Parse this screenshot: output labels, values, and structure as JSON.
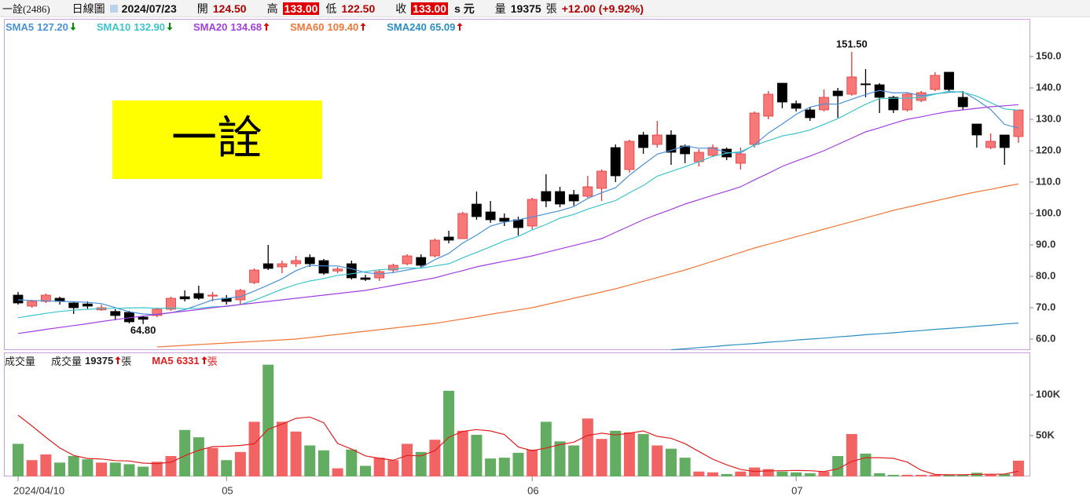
{
  "header": {
    "symbol": "一詮(2486)",
    "view": "日線圖",
    "date": "2024/07/23",
    "open_label": "開",
    "open": "124.50",
    "high_label": "高",
    "high": "133.00",
    "low_label": "低",
    "low": "122.50",
    "close_label": "收",
    "close": "133.00",
    "currency": "s 元",
    "volume_label": "量",
    "volume": "19375",
    "volume_unit": "張",
    "change": "+12.00 (+9.92%)"
  },
  "chart_data": [
    {
      "type": "candlestick",
      "watermark": "一詮",
      "categories": [
        "2024/04/10",
        null,
        null,
        null,
        null,
        null,
        null,
        null,
        null,
        null,
        null,
        null,
        null,
        null,
        null,
        "05",
        null,
        null,
        null,
        null,
        null,
        null,
        null,
        null,
        null,
        null,
        null,
        null,
        null,
        null,
        null,
        null,
        null,
        null,
        null,
        null,
        null,
        "06",
        null,
        null,
        null,
        null,
        null,
        null,
        null,
        null,
        null,
        null,
        null,
        null,
        null,
        null,
        null,
        null,
        null,
        null,
        "07",
        null,
        null,
        null,
        null,
        null,
        null,
        null,
        null,
        null,
        null,
        null,
        null,
        null,
        null,
        null,
        null
      ],
      "open": [
        74,
        70.5,
        72,
        73,
        71.5,
        71.2,
        69.3,
        68.8,
        68.5,
        67,
        67.5,
        69.5,
        73.5,
        74.5,
        73.8,
        73,
        72.5,
        78,
        84,
        83,
        84,
        86,
        85,
        81.7,
        84,
        79.5,
        79.5,
        82,
        84,
        86,
        86.5,
        92.5,
        92,
        103,
        100.5,
        98.5,
        98,
        96,
        107,
        107,
        106,
        105.5,
        108,
        121,
        114,
        125,
        122,
        125,
        121.5,
        116.5,
        118.5,
        120.5,
        116,
        122,
        131,
        141.5,
        135,
        133,
        133,
        139,
        138,
        141.3,
        141,
        137,
        133,
        136,
        139.5,
        145,
        137,
        128.5,
        121,
        125,
        124.5
      ],
      "high": [
        75,
        72.5,
        74.5,
        73.5,
        72,
        72,
        71,
        69.5,
        69,
        67.5,
        70,
        73.5,
        75.5,
        77,
        75,
        74,
        76,
        82.5,
        90,
        85,
        86.5,
        87,
        85.5,
        83,
        85,
        80.5,
        82,
        84,
        87,
        87,
        92,
        94.5,
        100.5,
        107,
        104,
        100,
        99,
        105,
        112.5,
        108.5,
        107.5,
        112,
        114,
        122,
        123.5,
        126,
        129.5,
        126.5,
        122,
        120.5,
        122,
        121,
        121,
        132.5,
        139,
        141.5,
        136,
        134,
        139.5,
        140,
        151.5,
        146,
        141.5,
        137.5,
        138.5,
        139,
        145,
        145,
        139,
        128.5,
        125.5,
        125,
        133
      ],
      "low": [
        71,
        70,
        71.5,
        71,
        68,
        69.5,
        69,
        66,
        65,
        64.8,
        67,
        69,
        72,
        72.5,
        72,
        71,
        71,
        77.5,
        82,
        81,
        83,
        83,
        80.5,
        81,
        79,
        78.5,
        78.5,
        81,
        83.5,
        83,
        86,
        90.5,
        92,
        98,
        97,
        96,
        93,
        95,
        102,
        102,
        102.5,
        105,
        104,
        110,
        113,
        119,
        121,
        115.5,
        116,
        115,
        118,
        117,
        114,
        121,
        130,
        133.5,
        132.5,
        129.5,
        132.5,
        130.5,
        137.5,
        137,
        132,
        132,
        132.5,
        135.5,
        139,
        139,
        133,
        121,
        120.5,
        115.5,
        122.5
      ],
      "close": [
        71.5,
        72,
        74,
        72,
        70,
        70.5,
        70,
        67.5,
        65.5,
        66.3,
        69.5,
        73,
        72.8,
        73,
        74,
        72,
        75.5,
        82,
        82.5,
        84,
        85,
        84,
        81,
        82.3,
        79.5,
        79,
        81.5,
        83.5,
        86.5,
        83.5,
        91.5,
        91.5,
        100,
        99,
        98,
        97.5,
        95.5,
        104.5,
        104,
        103,
        104,
        108.5,
        113.5,
        112,
        123,
        121,
        125,
        119.5,
        119,
        119.5,
        121,
        118,
        119,
        132,
        138,
        135.5,
        133.5,
        130.5,
        137,
        137.5,
        143.5,
        141,
        137,
        133,
        138,
        138.5,
        144,
        139.5,
        134,
        125,
        123,
        121,
        133
      ],
      "up_color": "#f77878",
      "up_border": "#e03a3a",
      "down_color": "#000000",
      "high_label": "151.50",
      "low_label": "64.80",
      "trend_colors": {
        "up": "#e00000",
        "down": "#008a00"
      },
      "series": [
        {
          "name": "SMA5",
          "legend_value": "127.20",
          "trend": "down",
          "color": "#4a90d9",
          "values": [
            72.5,
            72.3,
            72.2,
            72.0,
            71.9,
            71.7,
            71.3,
            70.0,
            68.7,
            68.0,
            67.8,
            68.4,
            69.4,
            70.9,
            72.5,
            73.0,
            73.5,
            75.3,
            77.2,
            79.2,
            81.8,
            83.5,
            83.3,
            83.3,
            82.4,
            81.2,
            80.7,
            81.2,
            82.0,
            82.8,
            85.3,
            87.3,
            90.6,
            93.1,
            96.0,
            97.2,
            98.0,
            98.9,
            99.9,
            100.9,
            102.2,
            104.8,
            106.6,
            108.2,
            112.2,
            115.6,
            118.9,
            120.1,
            121.5,
            120.8,
            120.8,
            119.4,
            119.3,
            121.9,
            125.6,
            128.5,
            131.6,
            133.9,
            134.9,
            134.8,
            136.4,
            137.9,
            139.2,
            138.4,
            138.5,
            137.5,
            138.1,
            138.6,
            138.8,
            136.2,
            133.1,
            128.4,
            127.2
          ]
        },
        {
          "name": "SMA10",
          "legend_value": "132.90",
          "trend": "down",
          "color": "#3cc4cc",
          "values": [
            66.8,
            67.5,
            68.2,
            68.8,
            69.2,
            69.5,
            69.7,
            69.8,
            69.9,
            70.0,
            69.8,
            69.9,
            69.7,
            69.8,
            70.3,
            70.4,
            71.0,
            72.4,
            74.1,
            75.9,
            77.4,
            78.5,
            79.3,
            80.3,
            80.8,
            81.5,
            82.1,
            82.3,
            82.7,
            82.6,
            83.3,
            84.0,
            85.9,
            87.6,
            89.4,
            91.3,
            92.7,
            94.8,
            96.5,
            98.5,
            99.7,
            101.4,
            102.8,
            104.1,
            106.6,
            108.9,
            111.9,
            113.4,
            114.9,
            116.5,
            118.2,
            119.2,
            119.7,
            121.7,
            123.2,
            124.7,
            125.5,
            126.6,
            128.4,
            130.2,
            132.5,
            134.8,
            136.6,
            136.7,
            136.7,
            137.0,
            138.0,
            138.9,
            138.6,
            137.4,
            135.3,
            133.3,
            132.9
          ]
        },
        {
          "name": "SMA20",
          "legend_value": "134.68",
          "trend": "up",
          "color": "#a040e0",
          "values": [
            61.8,
            62.4,
            63.1,
            63.7,
            64.3,
            64.9,
            65.6,
            66.2,
            66.8,
            67.3,
            67.9,
            68.4,
            68.9,
            69.4,
            70.0,
            70.5,
            71.0,
            71.5,
            72.0,
            72.5,
            73.0,
            73.5,
            74.0,
            74.5,
            75.0,
            75.5,
            76.3,
            77.1,
            77.9,
            78.7,
            79.5,
            80.7,
            81.8,
            83.0,
            83.9,
            84.8,
            85.6,
            86.5,
            87.6,
            88.7,
            89.8,
            90.9,
            92.0,
            94.0,
            96.0,
            98.0,
            99.7,
            101.3,
            103.0,
            104.4,
            105.8,
            107.1,
            108.5,
            110.7,
            112.8,
            115.0,
            116.7,
            118.3,
            120.0,
            122.0,
            124.0,
            126.0,
            127.3,
            128.7,
            130.0,
            130.8,
            131.7,
            132.5,
            133.0,
            133.5,
            134.0,
            134.3,
            134.68
          ]
        },
        {
          "name": "SMA60",
          "legend_value": "109.40",
          "trend": "up",
          "color": "#f07838",
          "values": [
            null,
            null,
            null,
            null,
            null,
            null,
            null,
            null,
            null,
            null,
            57.5,
            57.75,
            58,
            58.25,
            58.5,
            58.75,
            59,
            59.25,
            59.5,
            59.75,
            60,
            60.5,
            61,
            61.5,
            62,
            62.5,
            63,
            63.5,
            64,
            64.5,
            65,
            65.7,
            66.4,
            67.1,
            67.9,
            68.6,
            69.3,
            70,
            71,
            72,
            73,
            74,
            75,
            76,
            77.2,
            78.4,
            79.6,
            80.8,
            82,
            83.4,
            84.8,
            86.2,
            87.6,
            89,
            90.2,
            91.4,
            92.6,
            93.8,
            95,
            96.2,
            97.4,
            98.6,
            99.8,
            101,
            102,
            103,
            104,
            105,
            106,
            106.9,
            107.7,
            108.6,
            109.4
          ]
        },
        {
          "name": "SMA240",
          "legend_value": "65.09",
          "trend": "up",
          "color": "#2a8ec0",
          "values": [
            null,
            null,
            null,
            null,
            null,
            null,
            null,
            null,
            null,
            null,
            null,
            null,
            null,
            null,
            null,
            null,
            null,
            null,
            null,
            null,
            null,
            null,
            null,
            null,
            null,
            null,
            null,
            null,
            null,
            null,
            null,
            null,
            null,
            null,
            null,
            null,
            null,
            null,
            null,
            null,
            null,
            null,
            null,
            null,
            null,
            null,
            null,
            56.6,
            56.9,
            57.3,
            57.6,
            58.0,
            58.3,
            58.6,
            59.0,
            59.3,
            59.7,
            60.0,
            60.3,
            60.7,
            61.0,
            61.4,
            61.7,
            62.0,
            62.4,
            62.7,
            63.1,
            63.4,
            63.7,
            64.1,
            64.4,
            64.8,
            65.09
          ]
        }
      ],
      "ylim": [
        56.5,
        162
      ],
      "yticks": [
        {
          "value": 60,
          "label": "60.0"
        },
        {
          "value": 70,
          "label": "70.0"
        },
        {
          "value": 80,
          "label": "80.0"
        },
        {
          "value": 90,
          "label": "90.0"
        },
        {
          "value": 100,
          "label": "100.0"
        },
        {
          "value": 110,
          "label": "110.0"
        },
        {
          "value": 120,
          "label": "120.0"
        },
        {
          "value": 130,
          "label": "130.0"
        },
        {
          "value": 140,
          "label": "140.0"
        },
        {
          "value": 150,
          "label": "150.0"
        }
      ]
    },
    {
      "type": "bar",
      "title": "成交量",
      "up_color": "#f26464",
      "down_color": "#62ad62",
      "values": [
        40000,
        20000,
        27000,
        17000,
        25000,
        21000,
        17000,
        17000,
        15000,
        12000,
        18000,
        25000,
        57000,
        48000,
        35000,
        20000,
        30000,
        67000,
        137000,
        67000,
        55000,
        38000,
        32000,
        10000,
        33000,
        13000,
        23000,
        20000,
        40000,
        30000,
        45000,
        105000,
        56000,
        51000,
        22000,
        23000,
        29000,
        33000,
        67000,
        43000,
        38000,
        71000,
        46000,
        56000,
        54000,
        52000,
        38000,
        34000,
        23000,
        6000,
        5000,
        3000,
        6000,
        11000,
        9000,
        6000,
        5000,
        4000,
        6000,
        25000,
        52000,
        28000,
        4000,
        2000,
        2000,
        2000,
        2000,
        2000,
        2500,
        4500,
        2280,
        3000,
        19375
      ],
      "name": "成交量",
      "legend_value": "19375",
      "unit": "張",
      "trend": "up",
      "series": [
        {
          "name": "MA5",
          "legend_value": "6331",
          "unit": "張",
          "trend": "up",
          "color": "#e02020",
          "values": [
            75000,
            62000,
            48000,
            35000,
            25800,
            22000,
            21400,
            19400,
            19000,
            16400,
            15800,
            17400,
            25400,
            32000,
            36600,
            37000,
            38000,
            40000,
            57800,
            64200,
            71200,
            72800,
            65800,
            40400,
            33600,
            25200,
            22200,
            19800,
            25800,
            25200,
            31600,
            48000,
            55200,
            57400,
            55800,
            51400,
            36200,
            31600,
            34800,
            39000,
            42000,
            50400,
            53000,
            50800,
            53000,
            55800,
            49200,
            46800,
            40200,
            30600,
            21200,
            14200,
            8600,
            6200,
            6800,
            7000,
            7400,
            7000,
            6000,
            9200,
            18400,
            23000,
            23000,
            22200,
            17600,
            7600,
            2400,
            2000,
            2100,
            2600,
            2656,
            2856,
            6331
          ]
        }
      ],
      "ylim": [
        0,
        152000
      ],
      "yticks": [
        {
          "value": 50000,
          "label": "50K"
        },
        {
          "value": 100000,
          "label": "100K"
        }
      ]
    }
  ]
}
